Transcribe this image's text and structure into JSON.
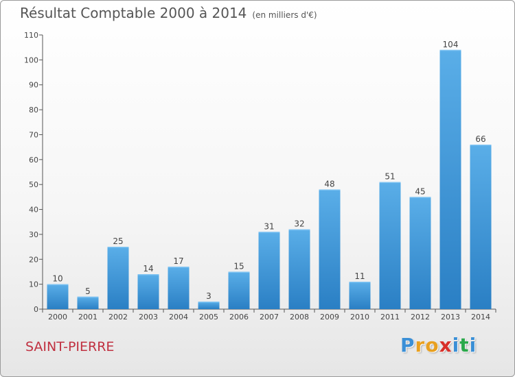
{
  "chart_data": {
    "type": "bar",
    "title": "Résultat Comptable 2000 à 2014",
    "subtitle": "(en milliers d'€)",
    "categories": [
      "2000",
      "2001",
      "2002",
      "2003",
      "2004",
      "2005",
      "2006",
      "2007",
      "2008",
      "2009",
      "2010",
      "2011",
      "2012",
      "2013",
      "2014"
    ],
    "values": [
      10,
      5,
      25,
      14,
      17,
      3,
      15,
      31,
      32,
      48,
      11,
      51,
      45,
      104,
      66
    ],
    "xlabel": "",
    "ylabel": "",
    "ylim": [
      0,
      110
    ],
    "yticks": [
      0,
      10,
      20,
      30,
      40,
      50,
      60,
      70,
      80,
      90,
      100,
      110
    ],
    "grid": false,
    "bar_color_top": "#5aaee8",
    "bar_color_bottom": "#2a7fc4"
  },
  "footer": {
    "place": "SAINT-PIERRE",
    "logo_letters": [
      "P",
      "r",
      "o",
      "x",
      "i",
      "t",
      "i"
    ],
    "logo_colors": [
      "#3a8fd6",
      "#e8a020",
      "#e8a020",
      "#d8302a",
      "#3a8fd6",
      "#2aa84a",
      "#3a8fd6"
    ]
  }
}
